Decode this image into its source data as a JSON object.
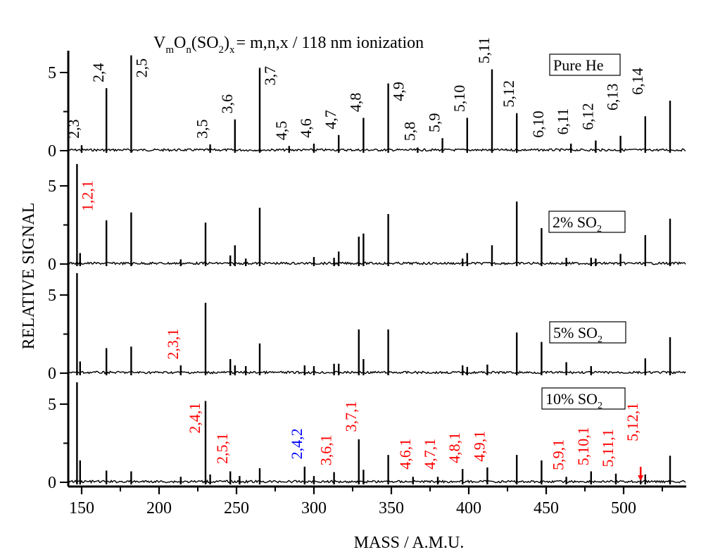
{
  "chart_data": {
    "type": "bar",
    "subtype": "stacked-panel mass spectra (stick spectra)",
    "title_parts": {
      "V": "V",
      "m": "m",
      "O": "O",
      "n": "n",
      "paren_open": "(SO",
      "two": "2",
      "paren_close": ")",
      "x": "x",
      "rest": "= m,n,x / 118 nm ionization"
    },
    "title": "VmOn(SO2)x = m,n,x / 118 nm ionization",
    "xlabel": "MASS / A.M.U.",
    "ylabel": "RELATIVE SIGNAL",
    "xlim": [
      140.5,
      540
    ],
    "xticks": [
      150,
      200,
      250,
      300,
      350,
      400,
      450,
      500
    ],
    "xticks_minor": [
      175,
      225,
      275,
      325,
      375,
      425,
      475,
      525
    ],
    "ylim": [
      0,
      6.5
    ],
    "yticks": [
      0,
      5
    ],
    "yticks_minor": [
      2.5
    ],
    "grid": false,
    "colors": {
      "axis": "#000000",
      "peak": "#000000",
      "label_new": "#ff0000",
      "label_x2": "#0000ff"
    },
    "panels": [
      {
        "name": "Pure He",
        "legend_main": "Pure He",
        "legend_sub": "",
        "peaks": [
          {
            "mass": 150,
            "value": 0.35
          },
          {
            "mass": 166,
            "value": 4.0
          },
          {
            "mass": 182,
            "value": 6.1
          },
          {
            "mass": 233,
            "value": 0.4
          },
          {
            "mass": 249,
            "value": 2.0
          },
          {
            "mass": 265,
            "value": 5.3
          },
          {
            "mass": 284,
            "value": 0.3
          },
          {
            "mass": 300,
            "value": 0.45
          },
          {
            "mass": 316,
            "value": 1.0
          },
          {
            "mass": 332,
            "value": 2.1
          },
          {
            "mass": 348,
            "value": 4.3
          },
          {
            "mass": 367,
            "value": 0.2
          },
          {
            "mass": 383,
            "value": 0.8
          },
          {
            "mass": 399,
            "value": 2.1
          },
          {
            "mass": 415,
            "value": 5.2
          },
          {
            "mass": 431,
            "value": 2.4
          },
          {
            "mass": 466,
            "value": 0.45
          },
          {
            "mass": 482,
            "value": 0.65
          },
          {
            "mass": 498,
            "value": 0.95
          },
          {
            "mass": 514,
            "value": 2.2
          },
          {
            "mass": 530,
            "value": 3.2
          }
        ],
        "labels": [
          {
            "text": "2,3",
            "mass": 150,
            "y": 0.5,
            "color": "black"
          },
          {
            "text": "2,4",
            "mass": 166,
            "y": 4.1,
            "color": "black"
          },
          {
            "text": "2,5",
            "mass": 182,
            "y": 4.4,
            "color": "black",
            "side": "right"
          },
          {
            "text": "3,5",
            "mass": 233,
            "y": 0.5,
            "color": "black"
          },
          {
            "text": "3,6",
            "mass": 249,
            "y": 2.1,
            "color": "black"
          },
          {
            "text": "3,7",
            "mass": 265,
            "y": 3.9,
            "color": "black",
            "side": "right"
          },
          {
            "text": "4,5",
            "mass": 284,
            "y": 0.4,
            "color": "black"
          },
          {
            "text": "4,6",
            "mass": 300,
            "y": 0.55,
            "color": "black"
          },
          {
            "text": "4,7",
            "mass": 316,
            "y": 1.1,
            "color": "black"
          },
          {
            "text": "4,8",
            "mass": 332,
            "y": 2.2,
            "color": "black"
          },
          {
            "text": "4,9",
            "mass": 348,
            "y": 2.9,
            "color": "black",
            "side": "right"
          },
          {
            "text": "5,8",
            "mass": 367,
            "y": 0.35,
            "color": "black"
          },
          {
            "text": "5,9",
            "mass": 383,
            "y": 0.9,
            "color": "black"
          },
          {
            "text": "5,10",
            "mass": 399,
            "y": 2.2,
            "color": "black"
          },
          {
            "text": "5,11",
            "mass": 415,
            "y": 5.3,
            "color": "black"
          },
          {
            "text": "5,12",
            "mass": 431,
            "y": 2.5,
            "color": "black"
          },
          {
            "text": "6,10",
            "mass": 450,
            "y": 0.55,
            "color": "black"
          },
          {
            "text": "6,11",
            "mass": 466,
            "y": 0.75,
            "color": "black"
          },
          {
            "text": "6,12",
            "mass": 482,
            "y": 1.05,
            "color": "black"
          },
          {
            "text": "6,13",
            "mass": 498,
            "y": 2.3,
            "color": "black"
          },
          {
            "text": "6,14",
            "mass": 514,
            "y": 3.3,
            "color": "black"
          }
        ]
      },
      {
        "name": "2% SO2",
        "legend_main": "2% SO",
        "legend_sub": "2",
        "peaks": [
          {
            "mass": 147,
            "value": 6.4
          },
          {
            "mass": 149,
            "value": 0.7
          },
          {
            "mass": 166,
            "value": 2.8
          },
          {
            "mass": 182,
            "value": 3.3
          },
          {
            "mass": 214,
            "value": 0.3
          },
          {
            "mass": 230,
            "value": 2.65
          },
          {
            "mass": 246,
            "value": 0.55
          },
          {
            "mass": 249,
            "value": 1.2
          },
          {
            "mass": 256,
            "value": 0.35
          },
          {
            "mass": 265,
            "value": 3.6
          },
          {
            "mass": 300,
            "value": 0.45
          },
          {
            "mass": 313,
            "value": 0.4
          },
          {
            "mass": 316,
            "value": 0.8
          },
          {
            "mass": 329,
            "value": 1.75
          },
          {
            "mass": 332,
            "value": 1.95
          },
          {
            "mass": 348,
            "value": 3.2
          },
          {
            "mass": 396,
            "value": 0.35
          },
          {
            "mass": 399,
            "value": 0.7
          },
          {
            "mass": 415,
            "value": 1.2
          },
          {
            "mass": 431,
            "value": 4.0
          },
          {
            "mass": 447,
            "value": 2.3
          },
          {
            "mass": 463,
            "value": 0.4
          },
          {
            "mass": 479,
            "value": 0.4
          },
          {
            "mass": 482,
            "value": 0.35
          },
          {
            "mass": 498,
            "value": 0.65
          },
          {
            "mass": 514,
            "value": 1.85
          },
          {
            "mass": 530,
            "value": 2.9
          }
        ],
        "labels": [
          {
            "text": "1,2,1",
            "mass": 147,
            "y": 3.1,
            "color": "red",
            "side": "right"
          }
        ]
      },
      {
        "name": "5% SO2",
        "legend_main": "5% SO",
        "legend_sub": "2",
        "peaks": [
          {
            "mass": 147,
            "value": 6.4
          },
          {
            "mass": 149,
            "value": 0.75
          },
          {
            "mass": 166,
            "value": 1.6
          },
          {
            "mass": 182,
            "value": 1.7
          },
          {
            "mass": 214,
            "value": 0.5
          },
          {
            "mass": 230,
            "value": 4.5
          },
          {
            "mass": 246,
            "value": 0.9
          },
          {
            "mass": 249,
            "value": 0.5
          },
          {
            "mass": 256,
            "value": 0.45
          },
          {
            "mass": 265,
            "value": 1.9
          },
          {
            "mass": 294,
            "value": 0.5
          },
          {
            "mass": 300,
            "value": 0.45
          },
          {
            "mass": 313,
            "value": 0.6
          },
          {
            "mass": 316,
            "value": 0.6
          },
          {
            "mass": 329,
            "value": 2.8
          },
          {
            "mass": 332,
            "value": 0.9
          },
          {
            "mass": 348,
            "value": 2.8
          },
          {
            "mass": 396,
            "value": 0.5
          },
          {
            "mass": 399,
            "value": 0.4
          },
          {
            "mass": 412,
            "value": 0.55
          },
          {
            "mass": 431,
            "value": 2.6
          },
          {
            "mass": 447,
            "value": 2.0
          },
          {
            "mass": 463,
            "value": 0.7
          },
          {
            "mass": 479,
            "value": 0.45
          },
          {
            "mass": 514,
            "value": 0.95
          },
          {
            "mass": 530,
            "value": 2.3
          }
        ],
        "labels": [
          {
            "text": "2,3,1",
            "mass": 214,
            "y": 0.6,
            "color": "red"
          }
        ]
      },
      {
        "name": "10% SO2",
        "legend_main": "10% SO",
        "legend_sub": "2",
        "peaks": [
          {
            "mass": 147,
            "value": 6.4
          },
          {
            "mass": 149,
            "value": 1.4
          },
          {
            "mass": 166,
            "value": 0.75
          },
          {
            "mass": 182,
            "value": 0.7
          },
          {
            "mass": 214,
            "value": 0.35
          },
          {
            "mass": 230,
            "value": 5.2
          },
          {
            "mass": 233,
            "value": 0.5
          },
          {
            "mass": 246,
            "value": 0.7
          },
          {
            "mass": 252,
            "value": 0.4
          },
          {
            "mass": 265,
            "value": 0.9
          },
          {
            "mass": 294,
            "value": 1.0
          },
          {
            "mass": 300,
            "value": 0.4
          },
          {
            "mass": 313,
            "value": 0.65
          },
          {
            "mass": 329,
            "value": 2.75
          },
          {
            "mass": 332,
            "value": 0.8
          },
          {
            "mass": 348,
            "value": 1.75
          },
          {
            "mass": 364,
            "value": 0.35
          },
          {
            "mass": 380,
            "value": 0.35
          },
          {
            "mass": 396,
            "value": 0.85
          },
          {
            "mass": 412,
            "value": 0.95
          },
          {
            "mass": 431,
            "value": 1.75
          },
          {
            "mass": 447,
            "value": 1.4
          },
          {
            "mass": 463,
            "value": 0.35
          },
          {
            "mass": 479,
            "value": 0.7
          },
          {
            "mass": 495,
            "value": 0.55
          },
          {
            "mass": 511,
            "value": 0.35
          },
          {
            "mass": 514,
            "value": 0.5
          },
          {
            "mass": 530,
            "value": 1.7
          }
        ],
        "labels": [
          {
            "text": "2,4,1",
            "mass": 230,
            "y": 2.85,
            "color": "red",
            "side": "left"
          },
          {
            "text": "2,5,1",
            "mass": 246,
            "y": 0.9,
            "color": "red"
          },
          {
            "text": "2,4,2",
            "mass": 294,
            "y": 1.2,
            "color": "blue"
          },
          {
            "text": "3,6,1",
            "mass": 313,
            "y": 0.8,
            "color": "red"
          },
          {
            "text": "3,7,1",
            "mass": 329,
            "y": 2.95,
            "color": "red"
          },
          {
            "text": "4,6,1",
            "mass": 364,
            "y": 0.55,
            "color": "red"
          },
          {
            "text": "4,7,1",
            "mass": 380,
            "y": 0.55,
            "color": "red"
          },
          {
            "text": "4,8,1",
            "mass": 396,
            "y": 0.95,
            "color": "red"
          },
          {
            "text": "4,9,1",
            "mass": 412,
            "y": 1.05,
            "color": "red"
          },
          {
            "text": "5,9,1",
            "mass": 463,
            "y": 0.5,
            "color": "red"
          },
          {
            "text": "5,10,1",
            "mass": 479,
            "y": 0.8,
            "color": "red"
          },
          {
            "text": "5,11,1",
            "mass": 495,
            "y": 0.7,
            "color": "red"
          },
          {
            "text": "5,12,1",
            "mass": 511,
            "y": 2.35,
            "color": "red",
            "arrow": true
          }
        ]
      }
    ]
  }
}
